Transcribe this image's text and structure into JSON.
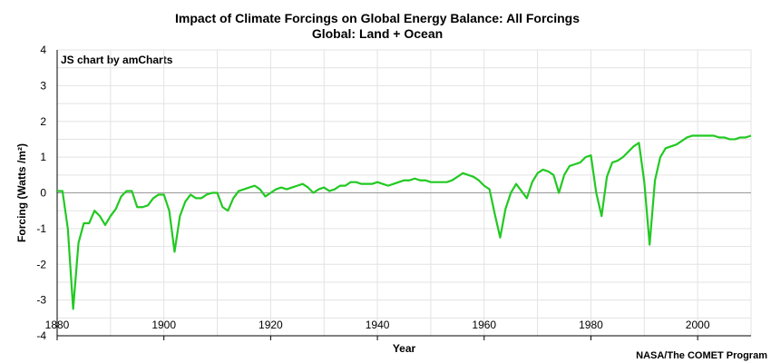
{
  "chart_data": {
    "type": "line",
    "title": "Impact of Climate Forcings on Global Energy Balance: All Forcings",
    "subtitle": "Global: Land + Ocean",
    "credit": "JS chart by amCharts",
    "source": "NASA/The COMET Program",
    "xlabel": "Year",
    "ylabel": "Forcing (Watts /m²)",
    "xlim": [
      1880,
      2010
    ],
    "ylim": [
      -4,
      4
    ],
    "xticks": [
      1880,
      1900,
      1920,
      1940,
      1960,
      1980,
      2000
    ],
    "yticks": [
      -4,
      -3,
      -2,
      -1,
      0,
      1,
      2,
      3,
      4
    ],
    "grid": true,
    "line_color": "#22c922",
    "series": [
      {
        "x": [
          1880,
          1881,
          1882,
          1883,
          1884,
          1885,
          1886,
          1887,
          1888,
          1889,
          1890,
          1891,
          1892,
          1893,
          1894,
          1895,
          1896,
          1897,
          1898,
          1899,
          1900,
          1901,
          1902,
          1903,
          1904,
          1905,
          1906,
          1907,
          1908,
          1909,
          1910,
          1911,
          1912,
          1913,
          1914,
          1915,
          1916,
          1917,
          1918,
          1919,
          1920,
          1921,
          1922,
          1923,
          1924,
          1925,
          1926,
          1927,
          1928,
          1929,
          1930,
          1931,
          1932,
          1933,
          1934,
          1935,
          1936,
          1937,
          1938,
          1939,
          1940,
          1941,
          1942,
          1943,
          1944,
          1945,
          1946,
          1947,
          1948,
          1949,
          1950,
          1951,
          1952,
          1953,
          1954,
          1955,
          1956,
          1957,
          1958,
          1959,
          1960,
          1961,
          1962,
          1963,
          1964,
          1965,
          1966,
          1967,
          1968,
          1969,
          1970,
          1971,
          1972,
          1973,
          1974,
          1975,
          1976,
          1977,
          1978,
          1979,
          1980,
          1981,
          1982,
          1983,
          1984,
          1985,
          1986,
          1987,
          1988,
          1989,
          1990,
          1991,
          1992,
          1993,
          1994,
          1995,
          1996,
          1997,
          1998,
          1999,
          2000,
          2001,
          2002,
          2003,
          2004,
          2005,
          2006,
          2007,
          2008,
          2009,
          2010
        ],
        "values": [
          0.05,
          0.05,
          -1.0,
          -3.25,
          -1.4,
          -0.85,
          -0.85,
          -0.5,
          -0.65,
          -0.9,
          -0.65,
          -0.45,
          -0.1,
          0.05,
          0.05,
          -0.4,
          -0.4,
          -0.35,
          -0.15,
          -0.05,
          -0.05,
          -0.5,
          -1.65,
          -0.65,
          -0.25,
          -0.05,
          -0.15,
          -0.15,
          -0.05,
          0.0,
          0.0,
          -0.4,
          -0.5,
          -0.15,
          0.05,
          0.1,
          0.15,
          0.2,
          0.1,
          -0.1,
          0.0,
          0.1,
          0.15,
          0.1,
          0.15,
          0.2,
          0.25,
          0.15,
          0.0,
          0.1,
          0.15,
          0.05,
          0.1,
          0.2,
          0.2,
          0.3,
          0.3,
          0.25,
          0.25,
          0.25,
          0.3,
          0.25,
          0.2,
          0.25,
          0.3,
          0.35,
          0.35,
          0.4,
          0.35,
          0.35,
          0.3,
          0.3,
          0.3,
          0.3,
          0.35,
          0.45,
          0.55,
          0.5,
          0.45,
          0.35,
          0.2,
          0.1,
          -0.6,
          -1.25,
          -0.45,
          0.0,
          0.25,
          0.05,
          -0.15,
          0.3,
          0.55,
          0.65,
          0.6,
          0.5,
          0.0,
          0.5,
          0.75,
          0.8,
          0.85,
          1.0,
          1.05,
          0.0,
          -0.65,
          0.45,
          0.85,
          0.9,
          1.0,
          1.15,
          1.3,
          1.4,
          0.3,
          -1.45,
          0.35,
          1.0,
          1.25,
          1.3,
          1.35,
          1.45,
          1.55,
          1.6,
          1.6,
          1.6,
          1.6,
          1.6,
          1.55,
          1.55,
          1.5,
          1.5,
          1.55,
          1.55,
          1.6
        ]
      }
    ]
  }
}
